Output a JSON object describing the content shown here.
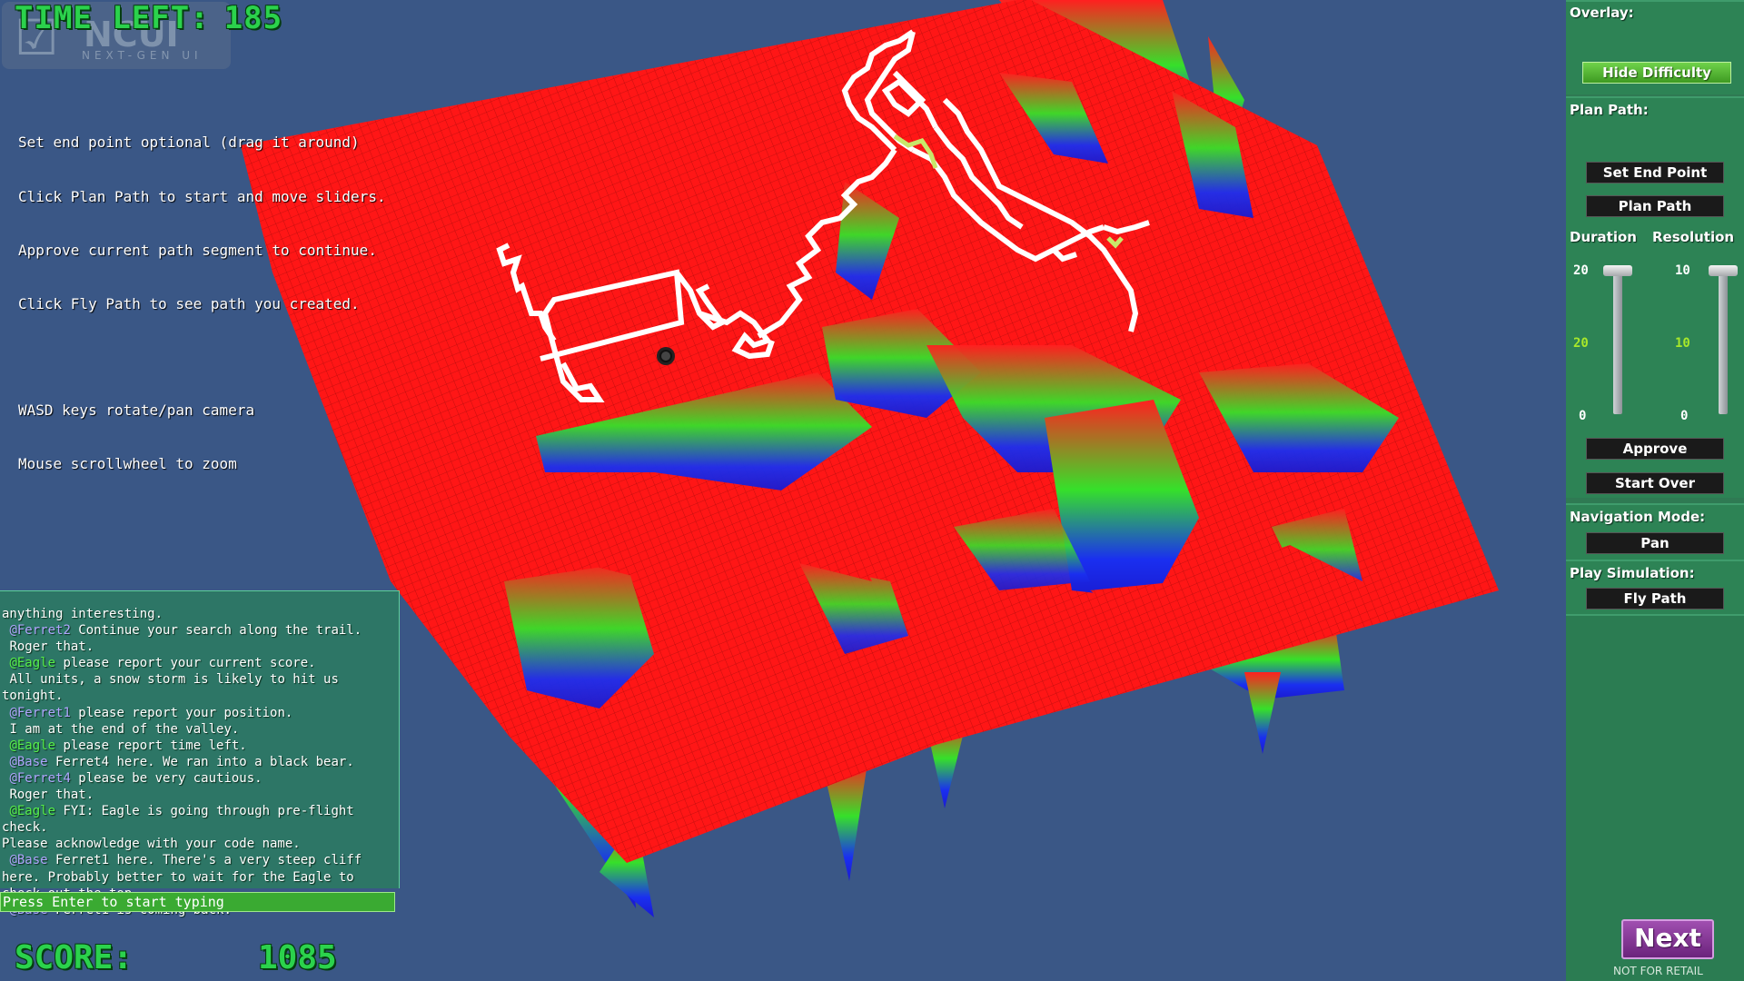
{
  "hud": {
    "time_label": "TIME LEFT:",
    "time_value": "185",
    "score_label": "SCORE:",
    "score_value": "1085",
    "logo_text": "NCUI",
    "logo_sub": "NEXT-GEN UI"
  },
  "instructions": [
    "Set end point optional (drag it around)",
    "Click Plan Path to start and move sliders.",
    "Approve current path segment to continue.",
    "Click Fly Path to see path you created.",
    "WASD keys rotate/pan camera",
    "Mouse scrollwheel to zoom"
  ],
  "chat": {
    "lines": [
      {
        "handle": "",
        "text": "anything interesting."
      },
      {
        "handle": "@Ferret2",
        "text": " Continue your search along the trail."
      },
      {
        "handle": "",
        "text": "Roger that."
      },
      {
        "handle": "@Eagle",
        "text": " please report your current score."
      },
      {
        "handle": "",
        "text": "All units, a snow storm is likely to hit us tonight."
      },
      {
        "handle": "@Ferret1",
        "text": " please report your position."
      },
      {
        "handle": "",
        "text": "I am at the end of the valley."
      },
      {
        "handle": "@Eagle",
        "text": " please report time left."
      },
      {
        "handle": "@Base",
        "text": " Ferret4 here. We ran into a black bear."
      },
      {
        "handle": "@Ferret4",
        "text": " please be very cautious."
      },
      {
        "handle": "",
        "text": "Roger that."
      },
      {
        "handle": "@Eagle",
        "text": " FYI: Eagle is going through pre-flight check."
      },
      {
        "handle": "",
        "text": "Please acknowledge with your code name."
      },
      {
        "handle": "@Base",
        "text": " Ferret1 here. There's a very steep cliff here. Probably better to wait for the Eagle to check out the top."
      },
      {
        "handle": "@Base",
        "text": " Ferret1 is coming back."
      }
    ],
    "input_placeholder": "Press Enter to start typing"
  },
  "panel": {
    "overlay_label": "Overlay:",
    "hide_difficulty": "Hide Difficulty",
    "plan_path_label": "Plan Path:",
    "set_end_point": "Set End Point",
    "plan_path": "Plan Path",
    "duration_label": "Duration",
    "resolution_label": "Resolution",
    "duration": {
      "max": "20",
      "value": "20",
      "min": "0"
    },
    "resolution": {
      "max": "10",
      "value": "10",
      "min": "0"
    },
    "approve": "Approve",
    "start_over": "Start Over",
    "nav_mode_label": "Navigation Mode:",
    "nav_mode_value": "Pan",
    "play_sim_label": "Play Simulation:",
    "fly_path": "Fly Path",
    "next": "Next",
    "not_for_retail": "NOT FOR RETAIL"
  },
  "colors": {
    "background": "#3a5786",
    "terrain_top": "#ff1a1a",
    "accent_green": "#2bd24c",
    "panel": "#2f7a53",
    "chat_handle_blue": "#b0a6ff",
    "chat_handle_green": "#57f04a"
  }
}
